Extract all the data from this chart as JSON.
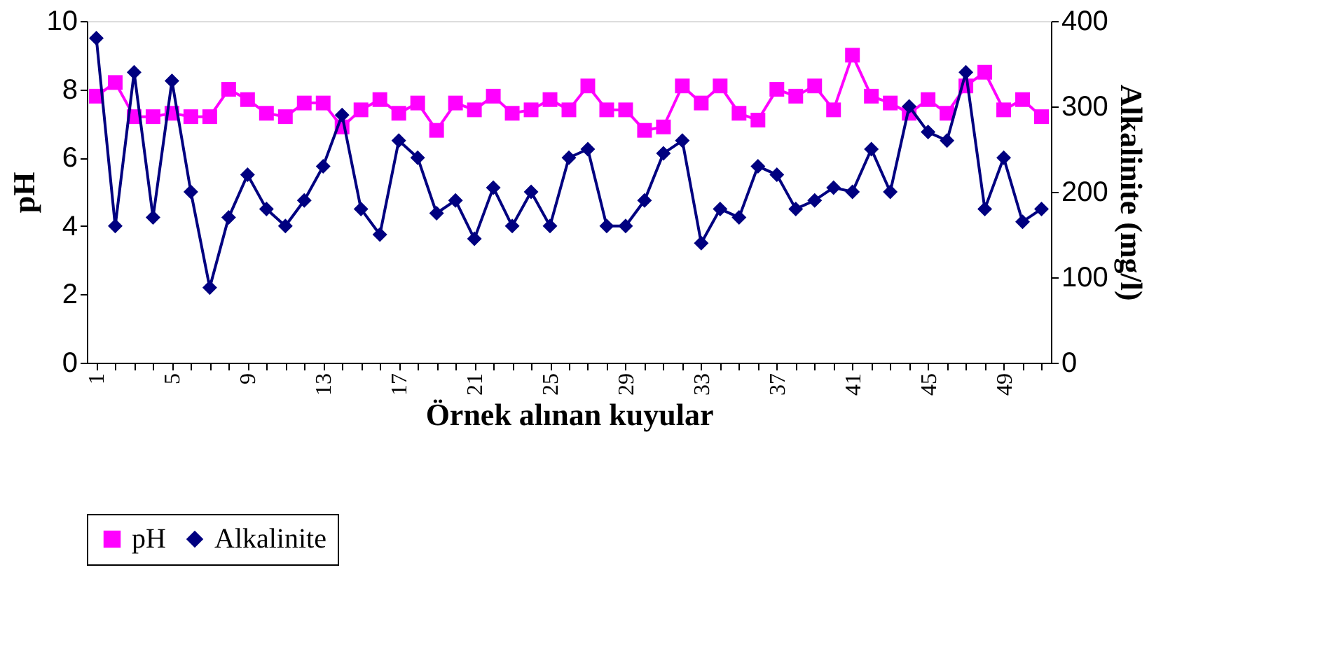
{
  "chart_data": {
    "type": "line",
    "xlabel": "Örnek alınan kuyular",
    "ylabel": "pH",
    "y2label": "Alkalinite (mg/l)",
    "categories": [
      "1",
      null,
      null,
      null,
      "5",
      null,
      null,
      null,
      "9",
      null,
      null,
      null,
      "13",
      null,
      null,
      null,
      "17",
      null,
      null,
      null,
      "21",
      null,
      null,
      null,
      "25",
      null,
      null,
      null,
      "29",
      null,
      null,
      null,
      "33",
      null,
      null,
      null,
      "37",
      null,
      null,
      null,
      "41",
      null,
      null,
      null,
      "45",
      null,
      null,
      null,
      "49",
      null,
      null
    ],
    "series": [
      {
        "name": "pH",
        "color": "#ff00ff",
        "marker": "square",
        "values": [
          7.8,
          8.2,
          7.2,
          7.2,
          7.3,
          7.2,
          7.2,
          8.0,
          7.7,
          7.3,
          7.2,
          7.6,
          7.6,
          6.9,
          7.4,
          7.7,
          7.3,
          7.6,
          6.8,
          7.6,
          7.4,
          7.8,
          7.3,
          7.4,
          7.7,
          7.4,
          8.1,
          7.4,
          7.4,
          6.8,
          6.9,
          8.1,
          7.6,
          8.1,
          7.3,
          7.1,
          8.0,
          7.8,
          8.1,
          7.4,
          9.0,
          7.8,
          7.6,
          7.3,
          7.7,
          7.3,
          8.1,
          8.5,
          7.4,
          7.7,
          7.2
        ]
      },
      {
        "name": "Alkalinite",
        "color": "#000080",
        "marker": "diamond",
        "axis": "y2",
        "values": [
          380,
          160,
          340,
          170,
          330,
          200,
          88,
          170,
          220,
          180,
          160,
          190,
          230,
          290,
          180,
          150,
          260,
          240,
          175,
          190,
          145,
          205,
          160,
          200,
          160,
          240,
          250,
          160,
          160,
          190,
          245,
          260,
          140,
          180,
          170,
          230,
          220,
          180,
          190,
          205,
          200,
          250,
          200,
          300,
          270,
          260,
          340,
          180,
          240,
          165,
          180
        ]
      }
    ],
    "ylim": [
      0,
      10
    ],
    "yticks": [
      0,
      2,
      4,
      6,
      8,
      10
    ],
    "y2lim": [
      0,
      400
    ],
    "y2ticks": [
      0,
      100,
      200,
      300,
      400
    ],
    "grid": false,
    "legend": "bottom"
  }
}
